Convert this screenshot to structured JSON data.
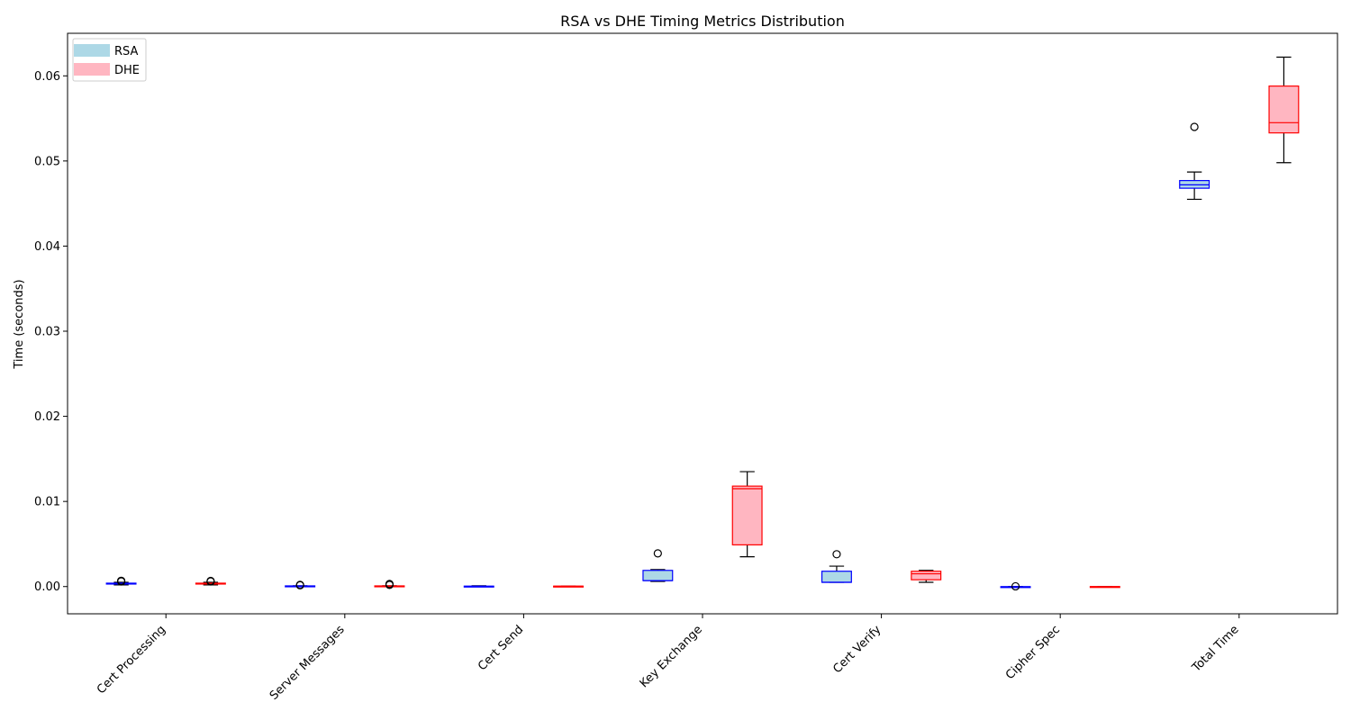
{
  "chart_data": {
    "type": "box",
    "title": "RSA vs DHE Timing Metrics Distribution",
    "xlabel": "",
    "ylabel": "Time (seconds)",
    "ylim": [
      -0.0032,
      0.065
    ],
    "yticks": [
      0.0,
      0.01,
      0.02,
      0.03,
      0.04,
      0.05,
      0.06
    ],
    "ytick_labels": [
      "0.00",
      "0.01",
      "0.02",
      "0.03",
      "0.04",
      "0.05",
      "0.06"
    ],
    "categories": [
      "Cert Processing",
      "Server Messages",
      "Cert Send",
      "Key Exchange",
      "Cert Verify",
      "Cipher Spec",
      "Total Time"
    ],
    "legend": {
      "position": "upper-left",
      "entries": [
        {
          "name": "RSA",
          "color": "#add8e6"
        },
        {
          "name": "DHE",
          "color": "#ffb6c1"
        }
      ]
    },
    "series": [
      {
        "name": "RSA",
        "fill": "#add8e6",
        "edge": "#0000ff",
        "boxes": [
          {
            "whislo": 0.0002,
            "q1": 0.0003,
            "med": 0.00035,
            "q3": 0.0004,
            "whishi": 0.0005,
            "fliers": [
              0.0006,
              0.00068
            ]
          },
          {
            "whislo": 0.0,
            "q1": 3e-05,
            "med": 5e-05,
            "q3": 8e-05,
            "whishi": 0.0001,
            "fliers": [
              0.00015,
              0.0002
            ]
          },
          {
            "whislo": 0.0,
            "q1": 2e-05,
            "med": 3e-05,
            "q3": 5e-05,
            "whishi": 9e-05,
            "fliers": []
          },
          {
            "whislo": 0.0006,
            "q1": 0.0007,
            "med": 0.0007,
            "q3": 0.0019,
            "whishi": 0.002,
            "fliers": [
              0.0039
            ]
          },
          {
            "whislo": 0.0005,
            "q1": 0.0005,
            "med": 0.0005,
            "q3": 0.0018,
            "whishi": 0.0024,
            "fliers": [
              0.0038
            ]
          },
          {
            "whislo": -5e-05,
            "q1": -3e-05,
            "med": -2e-05,
            "q3": -1e-05,
            "whishi": 0.0,
            "fliers": [
              3e-05
            ]
          },
          {
            "whislo": 0.0455,
            "q1": 0.0468,
            "med": 0.0472,
            "q3": 0.0477,
            "whishi": 0.0487,
            "fliers": [
              0.054
            ]
          }
        ]
      },
      {
        "name": "DHE",
        "fill": "#ffb6c1",
        "edge": "#ff0000",
        "boxes": [
          {
            "whislo": 0.0002,
            "q1": 0.0003,
            "med": 0.00035,
            "q3": 0.0004,
            "whishi": 0.0005,
            "fliers": [
              0.0006,
              0.00066
            ]
          },
          {
            "whislo": 0.0,
            "q1": 3e-05,
            "med": 5e-05,
            "q3": 8e-05,
            "whishi": 0.0001,
            "fliers": [
              0.0002,
              0.0003
            ]
          },
          {
            "whislo": 2e-05,
            "q1": 3e-05,
            "med": 4e-05,
            "q3": 5e-05,
            "whishi": 6e-05,
            "fliers": []
          },
          {
            "whislo": 0.0035,
            "q1": 0.0049,
            "med": 0.0115,
            "q3": 0.0118,
            "whishi": 0.0135,
            "fliers": []
          },
          {
            "whislo": 0.0005,
            "q1": 0.0008,
            "med": 0.0015,
            "q3": 0.0018,
            "whishi": 0.0019,
            "fliers": []
          },
          {
            "whislo": -3e-05,
            "q1": -2e-05,
            "med": -1e-05,
            "q3": 0.0,
            "whishi": 1e-05,
            "fliers": []
          },
          {
            "whislo": 0.0498,
            "q1": 0.0533,
            "med": 0.0545,
            "q3": 0.0588,
            "whishi": 0.0622,
            "fliers": []
          }
        ]
      }
    ]
  }
}
